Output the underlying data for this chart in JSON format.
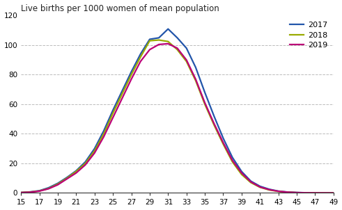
{
  "ages": [
    15,
    16,
    17,
    18,
    19,
    20,
    21,
    22,
    23,
    24,
    25,
    26,
    27,
    28,
    29,
    30,
    31,
    32,
    33,
    34,
    35,
    36,
    37,
    38,
    39,
    40,
    41,
    42,
    43,
    44,
    45,
    46,
    47,
    48,
    49
  ],
  "y2017": [
    0.3,
    0.7,
    1.5,
    3.5,
    6.5,
    10.5,
    15.0,
    21.0,
    30.0,
    42.0,
    56.0,
    69.0,
    82.0,
    94.0,
    104.0,
    105.0,
    111.0,
    105.0,
    98.0,
    85.0,
    68.0,
    52.0,
    37.0,
    24.0,
    14.5,
    8.0,
    4.5,
    2.5,
    1.2,
    0.6,
    0.3,
    0.1,
    0.05,
    0.02,
    0.01
  ],
  "y2018": [
    0.3,
    0.6,
    1.3,
    3.0,
    6.0,
    10.0,
    14.5,
    20.0,
    28.5,
    40.0,
    54.0,
    67.0,
    80.0,
    92.0,
    103.0,
    103.5,
    102.5,
    97.0,
    89.0,
    76.0,
    60.0,
    46.0,
    33.0,
    21.0,
    12.5,
    7.0,
    3.8,
    2.0,
    1.0,
    0.5,
    0.2,
    0.1,
    0.05,
    0.02,
    0.01
  ],
  "y2019": [
    0.2,
    0.5,
    1.2,
    2.8,
    5.5,
    9.5,
    13.5,
    19.0,
    27.0,
    38.0,
    51.0,
    64.0,
    77.0,
    89.0,
    97.0,
    100.5,
    101.0,
    98.0,
    90.0,
    77.0,
    61.0,
    47.0,
    34.0,
    22.0,
    13.5,
    7.5,
    4.0,
    2.2,
    1.1,
    0.5,
    0.2,
    0.1,
    0.05,
    0.02,
    0.01
  ],
  "color_2017": "#2255aa",
  "color_2018": "#99aa00",
  "color_2019": "#bb0077",
  "title": "Live births per 1000 women of mean population",
  "ylim": [
    0,
    120
  ],
  "yticks": [
    0,
    20,
    40,
    60,
    80,
    100,
    120
  ],
  "xticks": [
    15,
    17,
    19,
    21,
    23,
    25,
    27,
    29,
    31,
    33,
    35,
    37,
    39,
    41,
    43,
    45,
    47,
    49
  ],
  "legend_labels": [
    "2017",
    "2018",
    "2019"
  ],
  "linewidth": 1.6,
  "title_fontsize": 8.5,
  "tick_fontsize": 7.5
}
